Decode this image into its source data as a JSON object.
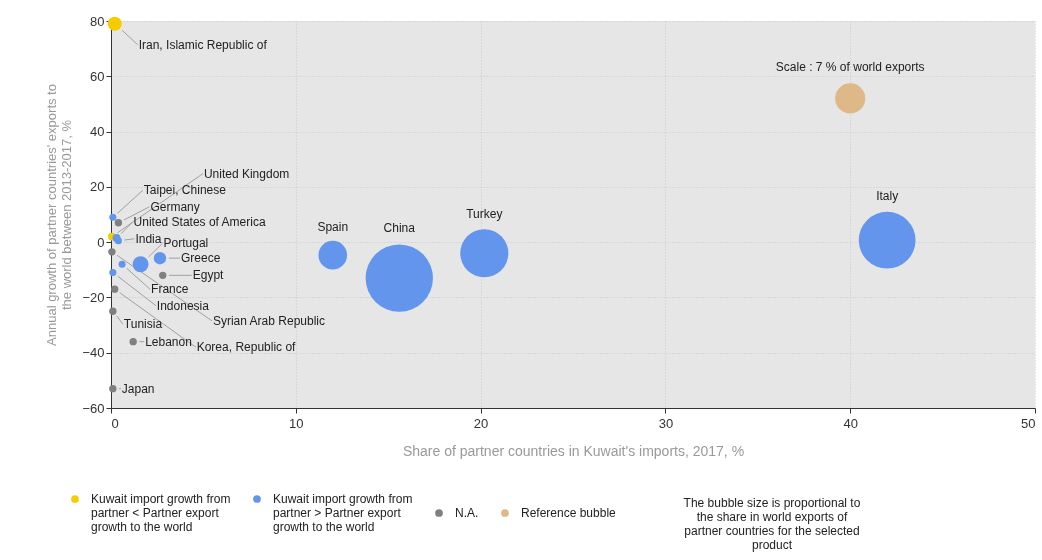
{
  "chart_data": {
    "type": "bubble",
    "xlabel": "Share of partner countries in Kuwait's imports, 2017, %",
    "ylabel": "Annual growth of partner countries' exports to the world between 2013-2017, %",
    "xlim": [
      0,
      50
    ],
    "xticks": [
      0,
      10,
      20,
      30,
      40,
      50
    ],
    "ylim": [
      -60,
      80
    ],
    "yticks": [
      -60,
      -40,
      -20,
      0,
      20,
      40,
      60,
      80
    ],
    "grid": true,
    "legend": "bottom",
    "series": [
      {
        "name": "Kuwait import growth from partner < Partner export growth to the world",
        "color": "#f5cc00",
        "x": [
          0.2,
          0.05
        ],
        "values": [
          79,
          2
        ],
        "sizes": [
          0.044,
          0.014
        ],
        "value_labels": [
          "Iran, Islamic Republic of",
          "United Kingdom"
        ]
      },
      {
        "name": "Kuwait import growth from partner > Partner export growth to the world",
        "color": "#6495ed",
        "x": [
          42,
          15.6,
          20.2,
          12,
          1.6,
          2.65,
          0.1,
          0.3,
          0.4,
          0.6,
          0.1
        ],
        "values": [
          0.7,
          -13,
          -4,
          -4.7,
          -8,
          -5.8,
          9,
          1.5,
          0.5,
          -8,
          -11
        ],
        "sizes": [
          0.71,
          1,
          0.51,
          0.18,
          0.056,
          0.034,
          0.011,
          0.014,
          0.011,
          0.011,
          0.011
        ],
        "value_labels": [
          "Italy",
          "China",
          "Turkey",
          "Spain",
          "Portugal",
          "Greece",
          "Taipei, Chinese",
          "United States of America",
          "India",
          "France",
          "Indonesia"
        ]
      },
      {
        "name": "N.A.",
        "color": "#808080",
        "x": [
          0.4,
          0.05,
          2.8,
          0.2,
          0.1,
          1.2,
          0.1
        ],
        "values": [
          7,
          -3.5,
          -12,
          -17,
          -25,
          -36,
          -53
        ],
        "sizes": [
          0.012,
          0.012,
          0.012,
          0.012,
          0.012,
          0.012,
          0.012
        ],
        "value_labels": [
          "Germany",
          "Syrian Arab Republic",
          "Egypt",
          "Korea, Republic of",
          "Tunisia",
          "Lebanon",
          "Japan"
        ]
      },
      {
        "name": "Reference bubble",
        "color": "#deb887",
        "x": [
          40
        ],
        "values": [
          52
        ],
        "sizes": [
          0.2
        ],
        "value_labels": [
          null
        ]
      }
    ],
    "annotations": [
      {
        "text": "Scale : 7 % of world exports",
        "x": 40,
        "y": 52
      },
      "The bubble size is proportional to the share in world exports of partner countries for the selected product"
    ]
  }
}
